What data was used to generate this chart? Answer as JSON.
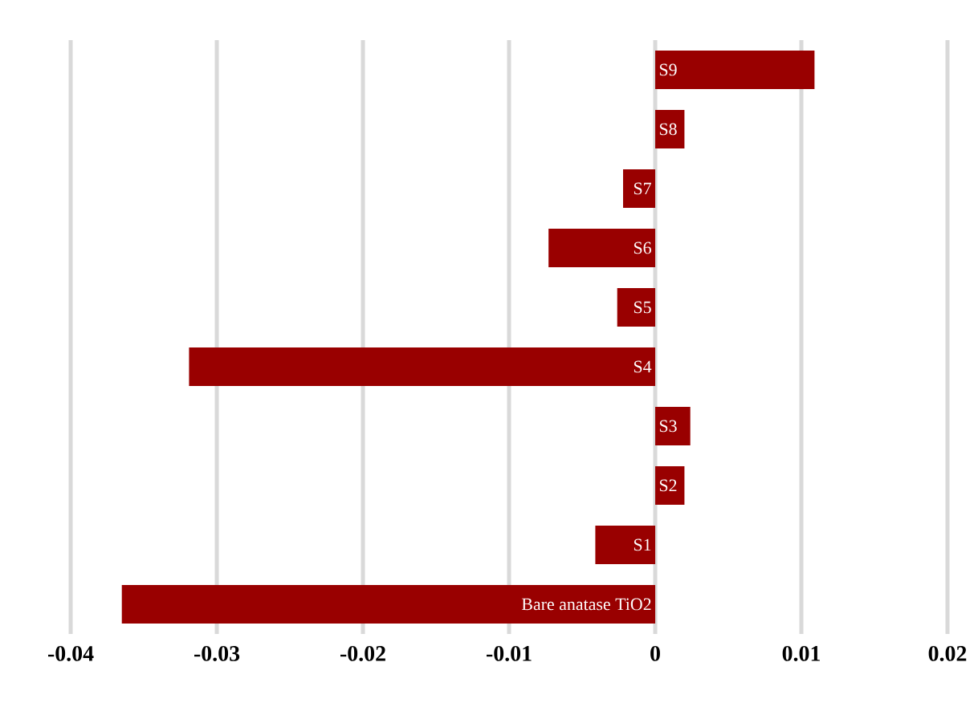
{
  "chart_data": {
    "type": "bar",
    "orientation": "horizontal",
    "categories": [
      "S9",
      "S8",
      "S7",
      "S6",
      "S5",
      "S4",
      "S3",
      "S2",
      "S1",
      "Bare anatase TiO2"
    ],
    "values": [
      0.0109,
      0.002,
      -0.0022,
      -0.0073,
      -0.0026,
      -0.0319,
      0.0024,
      0.002,
      -0.0041,
      -0.0365
    ],
    "color": "#990000",
    "xlim": [
      -0.04,
      0.02
    ],
    "xticks": [
      -0.04,
      -0.03,
      -0.02,
      -0.01,
      0,
      0.01,
      0.02
    ],
    "grid": "x"
  }
}
